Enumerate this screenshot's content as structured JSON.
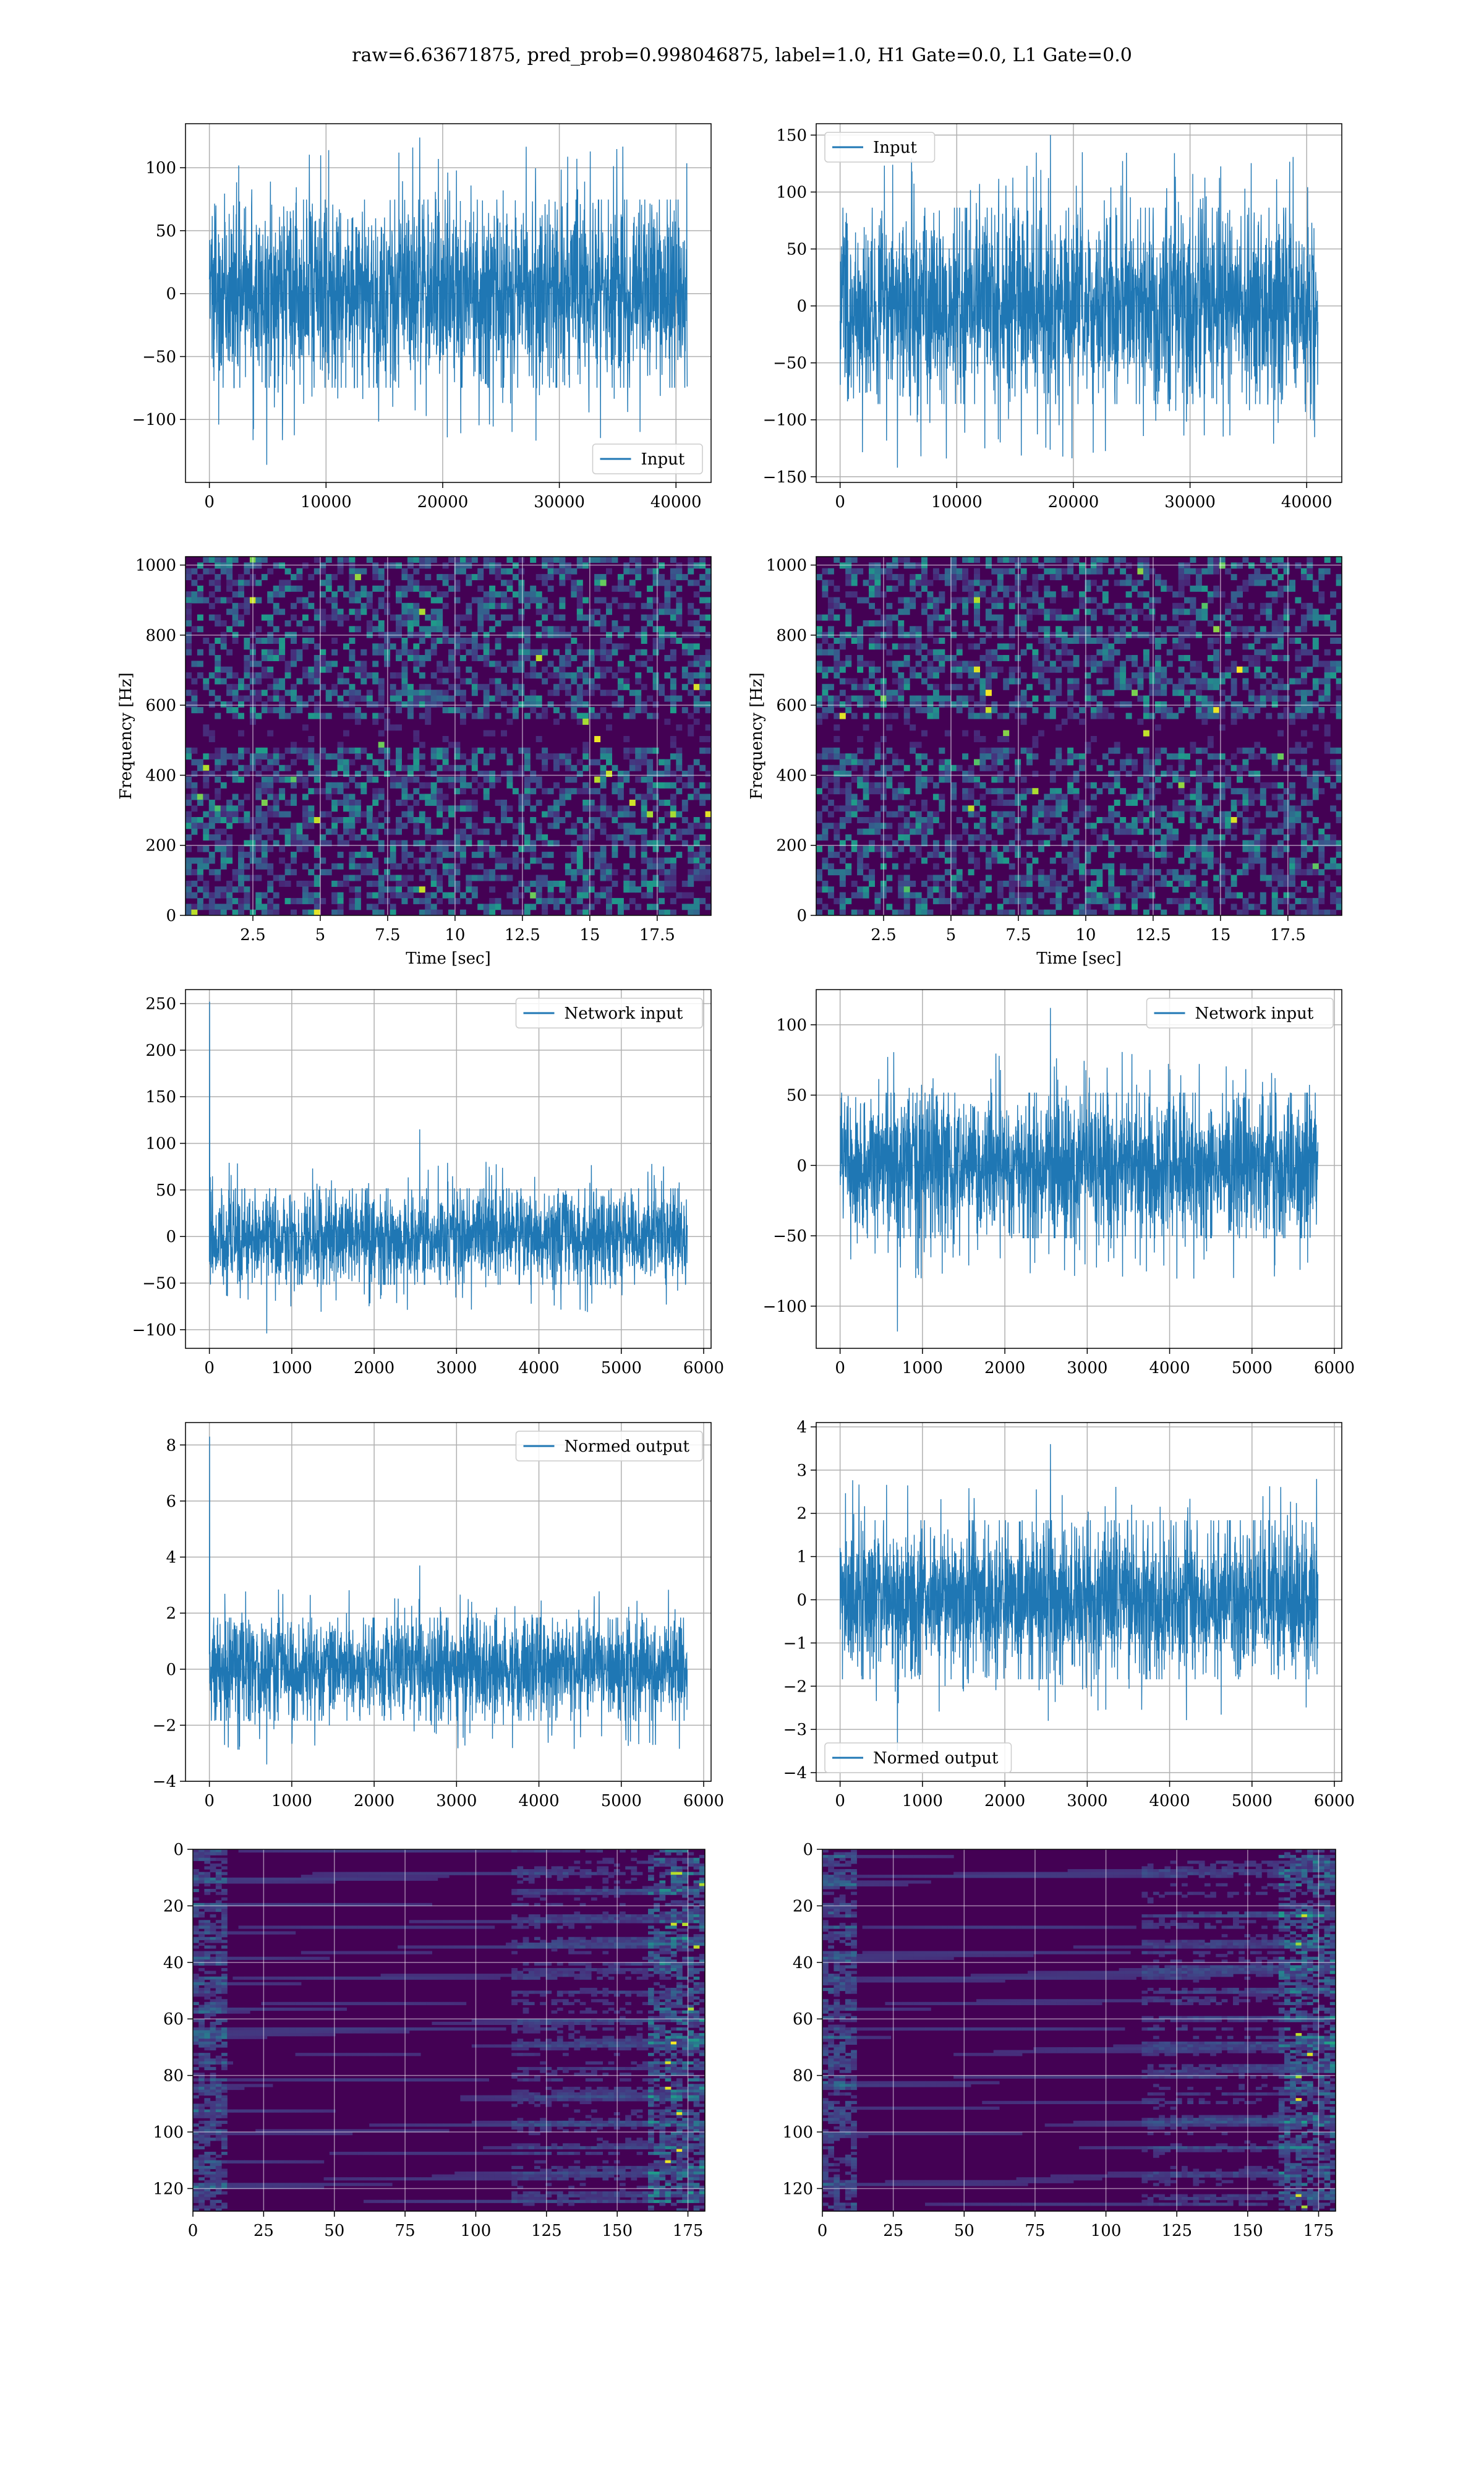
{
  "suptitle": "raw=6.63671875, pred_prob=0.998046875, label=1.0, H1 Gate=0.0, L1 Gate=0.0",
  "colors": {
    "line": "#1f77b4",
    "grid": "#b0b0b0",
    "viridis_low": "#440154",
    "viridis_mid": "#21918c",
    "viridis_high": "#fde725"
  },
  "chart_data": [
    {
      "id": "input-h1",
      "type": "line",
      "series": [
        {
          "name": "Input"
        }
      ],
      "x_range": [
        0,
        40960
      ],
      "envelope": [
        -65,
        65
      ],
      "spike_max": 124,
      "spike_min": -136,
      "xlim": [
        -2048,
        43008
      ],
      "ylim": [
        -150,
        135
      ],
      "xticks": [
        0,
        10000,
        20000,
        30000,
        40000
      ],
      "yticks": [
        -100,
        -50,
        0,
        50,
        100
      ],
      "legend": "lower right",
      "grid": true
    },
    {
      "id": "input-l1",
      "type": "line",
      "series": [
        {
          "name": "Input"
        }
      ],
      "x_range": [
        0,
        40960
      ],
      "envelope": [
        -75,
        75
      ],
      "spike_max": 150,
      "spike_min": -142,
      "xlim": [
        -2048,
        43008
      ],
      "ylim": [
        -155,
        160
      ],
      "xticks": [
        0,
        10000,
        20000,
        30000,
        40000
      ],
      "yticks": [
        -150,
        -100,
        -50,
        0,
        50,
        100,
        150
      ],
      "legend": "upper left",
      "grid": true
    },
    {
      "id": "spec-h1",
      "type": "heatmap",
      "xlabel": "Time [sec]",
      "ylabel": "Frequency [Hz]",
      "xlim": [
        0,
        19.5
      ],
      "ylim": [
        0,
        1024
      ],
      "xticks": [
        2.5,
        5.0,
        7.5,
        10.0,
        12.5,
        15.0,
        17.5
      ],
      "yticks": [
        0,
        200,
        400,
        600,
        800,
        1000
      ],
      "colormap": "viridis",
      "grid": true
    },
    {
      "id": "spec-l1",
      "type": "heatmap",
      "xlabel": "Time [sec]",
      "ylabel": "Frequency [Hz]",
      "xlim": [
        0,
        19.5
      ],
      "ylim": [
        0,
        1024
      ],
      "xticks": [
        2.5,
        5.0,
        7.5,
        10.0,
        12.5,
        15.0,
        17.5
      ],
      "yticks": [
        0,
        200,
        400,
        600,
        800,
        1000
      ],
      "colormap": "viridis",
      "grid": true
    },
    {
      "id": "netin-h1",
      "type": "line",
      "series": [
        {
          "name": "Network input"
        }
      ],
      "x_range": [
        0,
        5800
      ],
      "envelope": [
        -45,
        45
      ],
      "spike_max": 115,
      "spike_min": -104,
      "start_spike": 252,
      "xlim": [
        -290,
        6090
      ],
      "ylim": [
        -120,
        265
      ],
      "xticks": [
        0,
        1000,
        2000,
        3000,
        4000,
        5000,
        6000
      ],
      "yticks": [
        -100,
        -50,
        0,
        50,
        100,
        150,
        200,
        250
      ],
      "legend": "upper right",
      "grid": true
    },
    {
      "id": "netin-l1",
      "type": "line",
      "series": [
        {
          "name": "Network input"
        }
      ],
      "x_range": [
        0,
        5800
      ],
      "envelope": [
        -45,
        45
      ],
      "spike_max": 112,
      "spike_min": -118,
      "xlim": [
        -290,
        6090
      ],
      "ylim": [
        -130,
        125
      ],
      "xticks": [
        0,
        1000,
        2000,
        3000,
        4000,
        5000,
        6000
      ],
      "yticks": [
        -100,
        -50,
        0,
        50,
        100
      ],
      "legend": "upper right",
      "grid": true
    },
    {
      "id": "normed-h1",
      "type": "line",
      "series": [
        {
          "name": "Normed output"
        }
      ],
      "x_range": [
        0,
        5800
      ],
      "envelope": [
        -1.6,
        1.6
      ],
      "spike_max": 3.7,
      "spike_min": -3.4,
      "start_spike": 8.3,
      "xlim": [
        -290,
        6090
      ],
      "ylim": [
        -4,
        8.8
      ],
      "xticks": [
        0,
        1000,
        2000,
        3000,
        4000,
        5000,
        6000
      ],
      "yticks": [
        -4,
        -2,
        0,
        2,
        4,
        6,
        8
      ],
      "legend": "upper right",
      "grid": true
    },
    {
      "id": "normed-l1",
      "type": "line",
      "series": [
        {
          "name": "Normed output"
        }
      ],
      "x_range": [
        0,
        5800
      ],
      "envelope": [
        -1.6,
        1.6
      ],
      "spike_max": 3.6,
      "spike_min": -3.5,
      "xlim": [
        -290,
        6090
      ],
      "ylim": [
        -4.2,
        4.1
      ],
      "xticks": [
        0,
        1000,
        2000,
        3000,
        4000,
        5000,
        6000
      ],
      "yticks": [
        -4,
        -3,
        -2,
        -1,
        0,
        1,
        2,
        3,
        4
      ],
      "legend": "lower left",
      "grid": true
    },
    {
      "id": "feat-h1",
      "type": "heatmap",
      "xlim": [
        0,
        181
      ],
      "ylim": [
        128,
        0
      ],
      "xticks": [
        0,
        25,
        50,
        75,
        100,
        125,
        150,
        175
      ],
      "yticks": [
        0,
        20,
        40,
        60,
        80,
        100,
        120
      ],
      "colormap": "viridis",
      "grid": true
    },
    {
      "id": "feat-l1",
      "type": "heatmap",
      "xlim": [
        0,
        181
      ],
      "ylim": [
        128,
        0
      ],
      "xticks": [
        0,
        25,
        50,
        75,
        100,
        125,
        150,
        175
      ],
      "yticks": [
        0,
        20,
        40,
        60,
        80,
        100,
        120
      ],
      "colormap": "viridis",
      "grid": true
    }
  ]
}
